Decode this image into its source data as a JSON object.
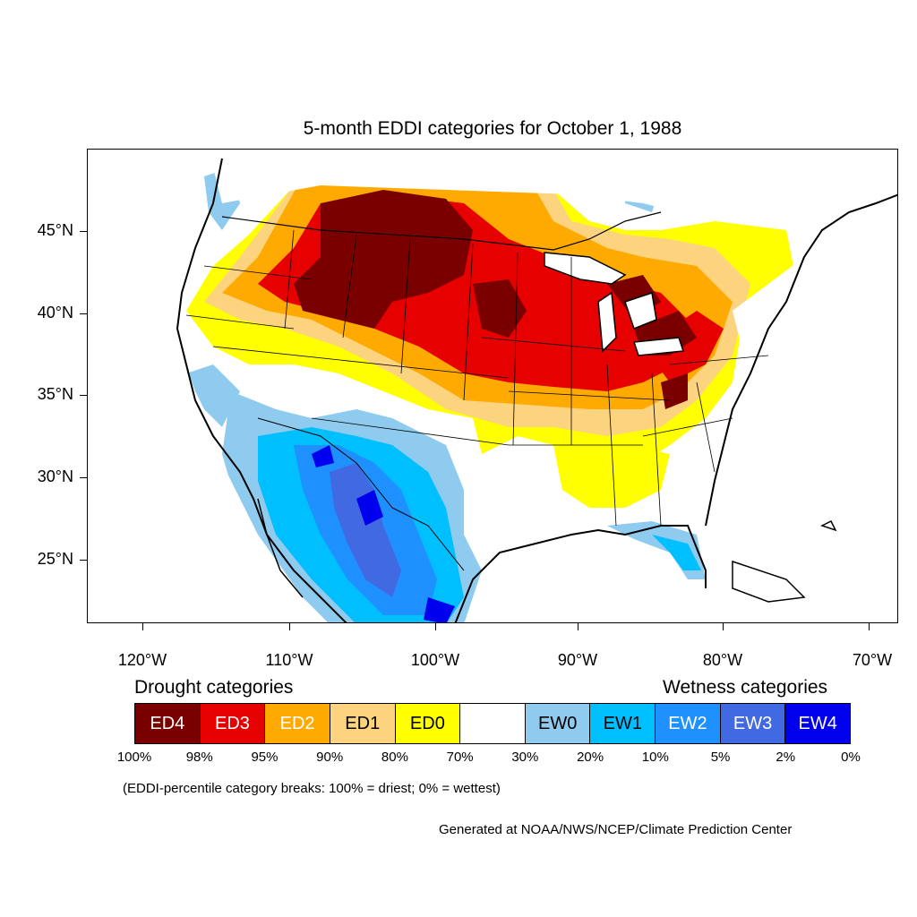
{
  "title": "5-month EDDI categories for October 1, 1988",
  "axes": {
    "y_ticks": [
      "45°N",
      "40°N",
      "35°N",
      "30°N",
      "25°N"
    ],
    "x_ticks": [
      "120°W",
      "110°W",
      "100°W",
      "90°W",
      "80°W",
      "70°W"
    ]
  },
  "legend": {
    "drought_heading": "Drought categories",
    "wetness_heading": "Wetness categories",
    "categories": [
      {
        "label": "ED4",
        "color": "#7a0000",
        "text_color": "#ffffff"
      },
      {
        "label": "ED3",
        "color": "#e60000",
        "text_color": "#ffffff"
      },
      {
        "label": "ED2",
        "color": "#ffaa00",
        "text_color": "#ffffff"
      },
      {
        "label": "ED1",
        "color": "#fcd37f",
        "text_color": "#000000"
      },
      {
        "label": "ED0",
        "color": "#ffff00",
        "text_color": "#000000"
      },
      {
        "label": "",
        "color": "#ffffff",
        "text_color": "#000000"
      },
      {
        "label": "EW0",
        "color": "#8ecbee",
        "text_color": "#000000"
      },
      {
        "label": "EW1",
        "color": "#00bfff",
        "text_color": "#000000"
      },
      {
        "label": "EW2",
        "color": "#1e90ff",
        "text_color": "#ffffff"
      },
      {
        "label": "EW3",
        "color": "#4169e1",
        "text_color": "#ffffff"
      },
      {
        "label": "EW4",
        "color": "#0000ee",
        "text_color": "#ffffff"
      }
    ],
    "breaks": [
      "100%",
      "98%",
      "95%",
      "90%",
      "80%",
      "70%",
      "30%",
      "20%",
      "10%",
      "5%",
      "2%",
      "0%"
    ]
  },
  "note": "(EDDI-percentile category breaks: 100% = driest; 0% = wettest)",
  "credit": "Generated at NOAA/NWS/NCEP/Climate Prediction Center"
}
